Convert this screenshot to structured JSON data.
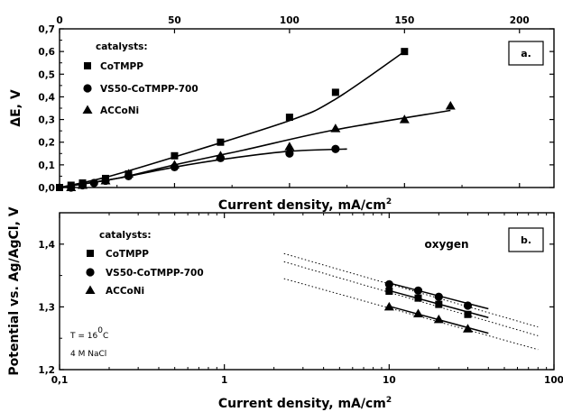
{
  "colors": {
    "ink": "#000000",
    "background": "#ffffff"
  },
  "chart_data": [
    {
      "type": "scatter",
      "panel_label": "a.",
      "xlabel": "Current density, mA/cm",
      "xlabel_sup": "2",
      "ylabel": "ΔE, V",
      "xlim": [
        0,
        215
      ],
      "ylim": [
        0,
        0.7
      ],
      "x_ticks": [
        "0",
        "50",
        "100",
        "150",
        "200"
      ],
      "y_ticks": [
        "0,0",
        "0,1",
        "0,2",
        "0,3",
        "0,4",
        "0,5",
        "0,6",
        "0,7"
      ],
      "top_axis_ticks": [
        "0",
        "50",
        "100",
        "150",
        "200"
      ],
      "legend_title": "catalysts:",
      "legend_position": "top-left",
      "series": [
        {
          "name": "CoTMPP",
          "marker": "square",
          "x": [
            0,
            5,
            10,
            20,
            30,
            50,
            70,
            100,
            120,
            150
          ],
          "y": [
            0.0,
            0.01,
            0.02,
            0.04,
            0.06,
            0.14,
            0.2,
            0.31,
            0.42,
            0.6
          ],
          "fit": [
            [
              0,
              0
            ],
            [
              20,
              0.045
            ],
            [
              50,
              0.135
            ],
            [
              100,
              0.295
            ],
            [
              120,
              0.39
            ],
            [
              150,
              0.6
            ]
          ]
        },
        {
          "name": "VS50-CoTMPP-700",
          "marker": "circle",
          "x": [
            5,
            10,
            15,
            20,
            30,
            50,
            70,
            100,
            120
          ],
          "y": [
            0.0,
            0.01,
            0.02,
            0.03,
            0.05,
            0.09,
            0.13,
            0.15,
            0.17
          ],
          "fit": [
            [
              0,
              0
            ],
            [
              25,
              0.04
            ],
            [
              50,
              0.09
            ],
            [
              75,
              0.13
            ],
            [
              100,
              0.16
            ],
            [
              125,
              0.17
            ]
          ]
        },
        {
          "name": "ACCoNi",
          "marker": "triangle",
          "x": [
            5,
            10,
            20,
            30,
            50,
            70,
            100,
            120,
            150,
            170
          ],
          "y": [
            0.0,
            0.01,
            0.03,
            0.06,
            0.1,
            0.14,
            0.18,
            0.26,
            0.3,
            0.36
          ],
          "fit": [
            [
              0,
              0
            ],
            [
              25,
              0.04
            ],
            [
              50,
              0.1
            ],
            [
              80,
              0.165
            ],
            [
              120,
              0.255
            ],
            [
              170,
              0.34
            ]
          ]
        }
      ]
    },
    {
      "type": "scatter",
      "panel_label": "b.",
      "xlabel": "Current density, mA/cm",
      "xlabel_sup": "2",
      "ylabel": "Potential vs. Ag/AgCl, V",
      "x_scale": "log",
      "xlim": [
        0.1,
        100
      ],
      "ylim": [
        1.2,
        1.45
      ],
      "x_ticks": [
        "0,1",
        "1",
        "10",
        "100"
      ],
      "y_ticks": [
        "1,2",
        "1,3",
        "1,4"
      ],
      "legend_title": "catalysts:",
      "legend_position": "top-left",
      "annotation_gas": "oxygen",
      "annotation_temp_prefix": "T = 16",
      "annotation_temp_sup": "0",
      "annotation_temp_suffix": "C",
      "annotation_electrolyte": "4 M NaCl",
      "series": [
        {
          "name": "CoTMPP",
          "marker": "square",
          "x": [
            10,
            15,
            20,
            30
          ],
          "y": [
            1.325,
            1.314,
            1.304,
            1.288
          ],
          "fit": [
            [
              10,
              1.326
            ],
            [
              40,
              1.283
            ]
          ],
          "extrapolation": [
            [
              2.3,
              1.372
            ],
            [
              80,
              1.254
            ]
          ]
        },
        {
          "name": "VS50-CoTMPP-700",
          "marker": "circle",
          "x": [
            10,
            15,
            20,
            30
          ],
          "y": [
            1.336,
            1.326,
            1.316,
            1.302
          ],
          "fit": [
            [
              10,
              1.338
            ],
            [
              40,
              1.297
            ]
          ],
          "extrapolation": [
            [
              2.3,
              1.385
            ],
            [
              80,
              1.268
            ]
          ]
        },
        {
          "name": "ACCoNi",
          "marker": "triangle",
          "x": [
            10,
            15,
            20,
            30
          ],
          "y": [
            1.3,
            1.289,
            1.28,
            1.265
          ],
          "fit": [
            [
              10,
              1.301
            ],
            [
              40,
              1.258
            ]
          ],
          "extrapolation": [
            [
              2.3,
              1.345
            ],
            [
              80,
              1.232
            ]
          ]
        }
      ]
    }
  ]
}
